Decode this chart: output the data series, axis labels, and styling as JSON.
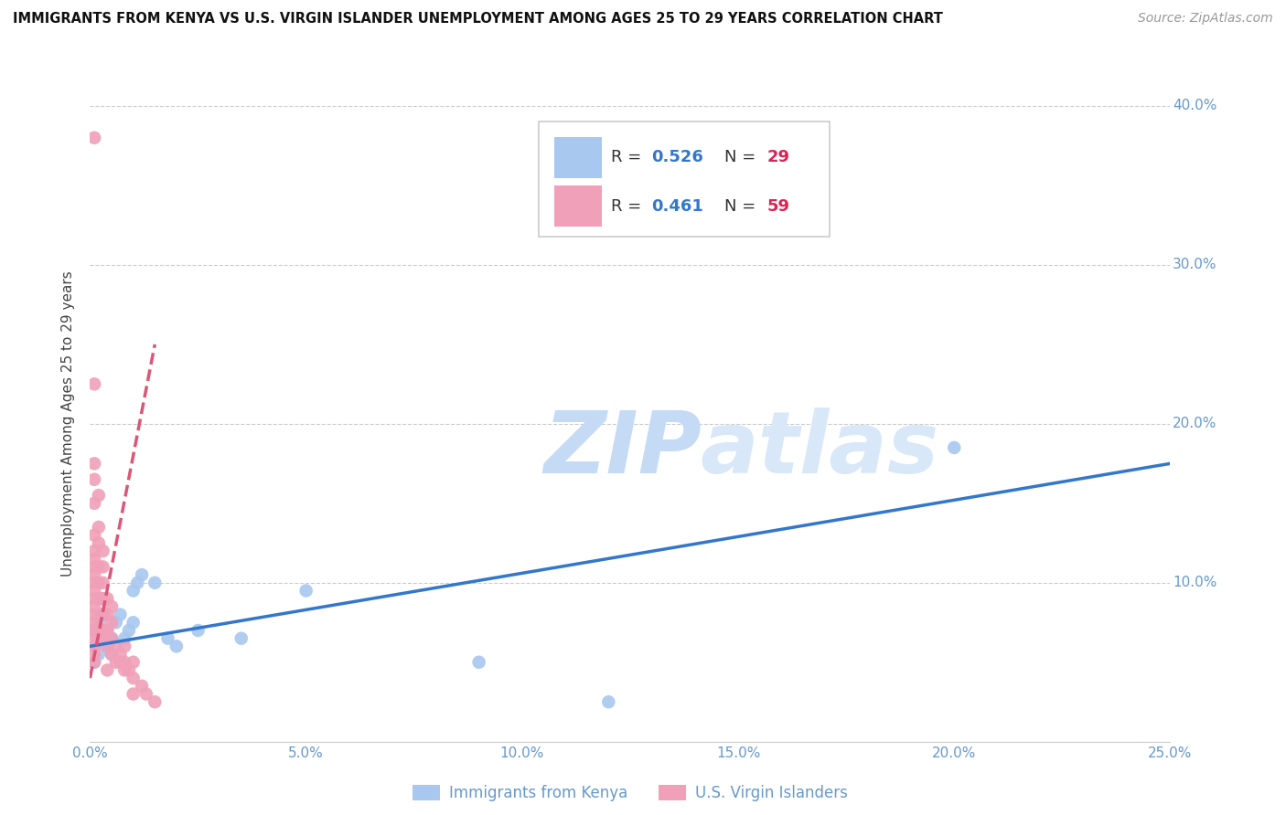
{
  "title": "IMMIGRANTS FROM KENYA VS U.S. VIRGIN ISLANDER UNEMPLOYMENT AMONG AGES 25 TO 29 YEARS CORRELATION CHART",
  "source": "Source: ZipAtlas.com",
  "ylabel": "Unemployment Among Ages 25 to 29 years",
  "xlim": [
    0.0,
    0.25
  ],
  "ylim": [
    0.0,
    0.4
  ],
  "xticks": [
    0.0,
    0.05,
    0.1,
    0.15,
    0.2,
    0.25
  ],
  "yticks": [
    0.0,
    0.1,
    0.2,
    0.3,
    0.4
  ],
  "xtick_labels": [
    "0.0%",
    "5.0%",
    "10.0%",
    "15.0%",
    "20.0%",
    "25.0%"
  ],
  "ytick_labels": [
    "",
    "10.0%",
    "20.0%",
    "30.0%",
    "40.0%"
  ],
  "blue_color": "#a8c8f0",
  "pink_color": "#f0a0b8",
  "blue_line_color": "#3377cc",
  "pink_line_color": "#dd5577",
  "tick_color": "#6699cc",
  "kenya_x": [
    0.001,
    0.001,
    0.001,
    0.002,
    0.002,
    0.002,
    0.003,
    0.003,
    0.004,
    0.004,
    0.005,
    0.005,
    0.006,
    0.007,
    0.008,
    0.009,
    0.01,
    0.01,
    0.011,
    0.012,
    0.015,
    0.018,
    0.02,
    0.025,
    0.035,
    0.05,
    0.09,
    0.12,
    0.2
  ],
  "kenya_y": [
    0.06,
    0.07,
    0.05,
    0.075,
    0.065,
    0.055,
    0.08,
    0.09,
    0.07,
    0.06,
    0.065,
    0.055,
    0.075,
    0.08,
    0.065,
    0.07,
    0.075,
    0.095,
    0.1,
    0.105,
    0.1,
    0.065,
    0.06,
    0.07,
    0.065,
    0.095,
    0.05,
    0.025,
    0.185
  ],
  "virgin_x": [
    0.001,
    0.001,
    0.001,
    0.001,
    0.001,
    0.001,
    0.001,
    0.001,
    0.001,
    0.001,
    0.001,
    0.001,
    0.001,
    0.001,
    0.001,
    0.001,
    0.001,
    0.001,
    0.001,
    0.001,
    0.001,
    0.002,
    0.002,
    0.002,
    0.002,
    0.002,
    0.002,
    0.002,
    0.002,
    0.003,
    0.003,
    0.003,
    0.003,
    0.003,
    0.003,
    0.003,
    0.004,
    0.004,
    0.004,
    0.004,
    0.004,
    0.005,
    0.005,
    0.005,
    0.005,
    0.006,
    0.006,
    0.007,
    0.007,
    0.008,
    0.008,
    0.008,
    0.009,
    0.01,
    0.01,
    0.01,
    0.012,
    0.013,
    0.015
  ],
  "virgin_y": [
    0.38,
    0.05,
    0.055,
    0.06,
    0.065,
    0.07,
    0.075,
    0.08,
    0.085,
    0.09,
    0.095,
    0.1,
    0.105,
    0.11,
    0.115,
    0.12,
    0.13,
    0.15,
    0.165,
    0.175,
    0.225,
    0.07,
    0.08,
    0.09,
    0.1,
    0.11,
    0.125,
    0.135,
    0.155,
    0.065,
    0.07,
    0.08,
    0.09,
    0.1,
    0.11,
    0.12,
    0.06,
    0.07,
    0.08,
    0.09,
    0.045,
    0.055,
    0.065,
    0.075,
    0.085,
    0.05,
    0.06,
    0.05,
    0.055,
    0.045,
    0.05,
    0.06,
    0.045,
    0.04,
    0.05,
    0.03,
    0.035,
    0.03,
    0.025
  ],
  "blue_trend_x0": 0.0,
  "blue_trend_x1": 0.25,
  "blue_trend_y0": 0.06,
  "blue_trend_y1": 0.175,
  "pink_trend_x0": 0.0,
  "pink_trend_x1": 0.015,
  "pink_trend_y0": 0.04,
  "pink_trend_y1": 0.25
}
